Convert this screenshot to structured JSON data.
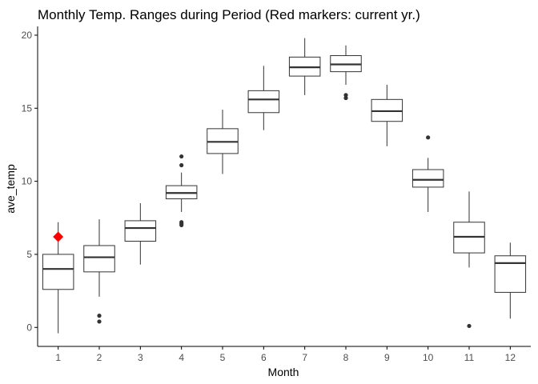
{
  "chart_data": {
    "type": "boxplot",
    "title": "Monthly Temp. Ranges during Period (Red markers: current yr.)",
    "xlabel": "Month",
    "ylabel": "ave_temp",
    "ylim": [
      -1.3,
      20.6
    ],
    "yticks": [
      0,
      5,
      10,
      15,
      20
    ],
    "categories": [
      "1",
      "2",
      "3",
      "4",
      "5",
      "6",
      "7",
      "8",
      "9",
      "10",
      "11",
      "12"
    ],
    "grid": false,
    "legend": "none",
    "boxes": [
      {
        "month": "1",
        "min": -0.4,
        "q1": 2.6,
        "median": 4.0,
        "q3": 5.0,
        "max": 7.2,
        "outliers": []
      },
      {
        "month": "2",
        "min": 2.1,
        "q1": 3.8,
        "median": 4.8,
        "q3": 5.6,
        "max": 7.4,
        "outliers": [
          0.4,
          0.8
        ]
      },
      {
        "month": "3",
        "min": 4.3,
        "q1": 5.9,
        "median": 6.8,
        "q3": 7.3,
        "max": 8.5,
        "outliers": []
      },
      {
        "month": "4",
        "min": 7.9,
        "q1": 8.8,
        "median": 9.2,
        "q3": 9.7,
        "max": 10.6,
        "outliers": [
          7.0,
          7.1,
          7.2,
          11.1,
          11.7
        ]
      },
      {
        "month": "5",
        "min": 10.5,
        "q1": 11.9,
        "median": 12.7,
        "q3": 13.6,
        "max": 14.9,
        "outliers": []
      },
      {
        "month": "6",
        "min": 13.5,
        "q1": 14.7,
        "median": 15.6,
        "q3": 16.2,
        "max": 17.9,
        "outliers": []
      },
      {
        "month": "7",
        "min": 15.9,
        "q1": 17.2,
        "median": 17.8,
        "q3": 18.5,
        "max": 19.8,
        "outliers": []
      },
      {
        "month": "8",
        "min": 16.6,
        "q1": 17.5,
        "median": 18.0,
        "q3": 18.6,
        "max": 19.3,
        "outliers": [
          15.7,
          15.9
        ]
      },
      {
        "month": "9",
        "min": 12.4,
        "q1": 14.1,
        "median": 14.8,
        "q3": 15.6,
        "max": 16.6,
        "outliers": []
      },
      {
        "month": "10",
        "min": 7.9,
        "q1": 9.6,
        "median": 10.1,
        "q3": 10.8,
        "max": 11.6,
        "outliers": [
          13.0
        ]
      },
      {
        "month": "11",
        "min": 4.1,
        "q1": 5.1,
        "median": 6.2,
        "q3": 7.2,
        "max": 9.3,
        "outliers": [
          0.1
        ]
      },
      {
        "month": "12",
        "min": 0.6,
        "q1": 2.4,
        "median": 4.4,
        "q3": 4.9,
        "max": 5.8,
        "outliers": []
      }
    ],
    "current_year": [
      {
        "month": "1",
        "value": 6.2
      }
    ],
    "colors": {
      "box_stroke": "#333333",
      "box_fill": "#ffffff",
      "outlier": "#333333",
      "current_marker": "#ff0000",
      "axis": "#000000",
      "tick_text": "#4d4d4d"
    }
  }
}
